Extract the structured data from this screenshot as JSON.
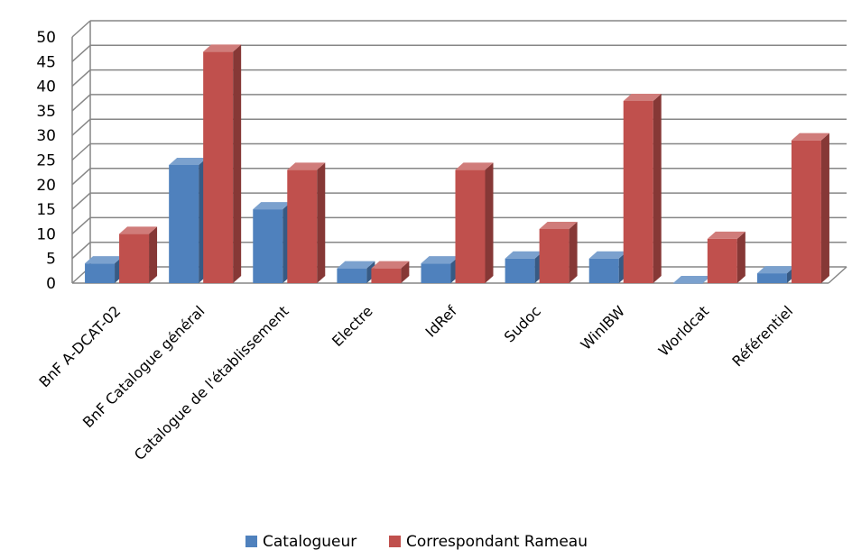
{
  "chart_data": {
    "type": "bar",
    "title": "",
    "xlabel": "",
    "ylabel": "",
    "ylim": [
      0,
      50
    ],
    "yticks": [
      0,
      5,
      10,
      15,
      20,
      25,
      30,
      35,
      40,
      45,
      50
    ],
    "grid": true,
    "style": "3d-clustered-column",
    "legend_position": "bottom",
    "categories": [
      "BnF A-DCAT-02",
      "BnF Catalogue général",
      "Catalogue de l'établissement",
      "Electre",
      "IdRef",
      "Sudoc",
      "WinIBW",
      "Worldcat",
      "Référentiel"
    ],
    "series": [
      {
        "name": "Catalogueur",
        "color": "#4f81bd",
        "values": [
          4,
          24,
          15,
          3,
          4,
          5,
          5,
          0,
          2
        ]
      },
      {
        "name": "Correspondant Rameau",
        "color": "#c0504d",
        "values": [
          10,
          47,
          23,
          3,
          23,
          11,
          37,
          9,
          29
        ]
      }
    ]
  }
}
